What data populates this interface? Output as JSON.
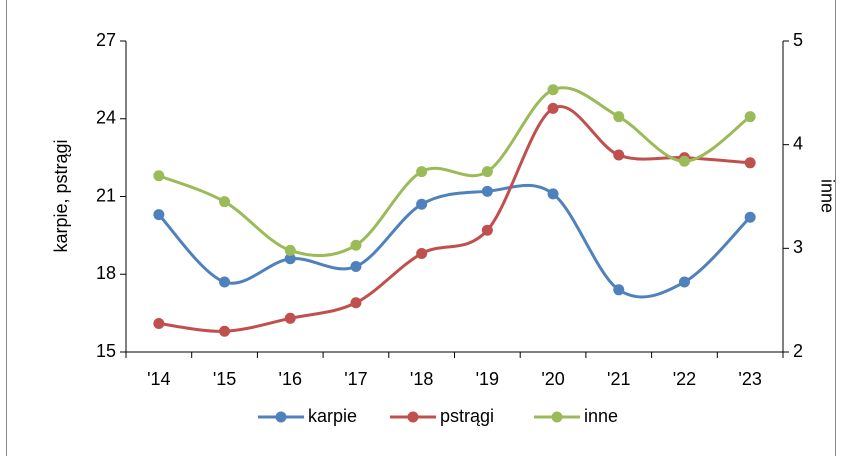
{
  "chart_data": {
    "type": "line",
    "categories": [
      "'14",
      "'15",
      "'16",
      "'17",
      "'18",
      "'19",
      "'20",
      "'21",
      "'22",
      "'23"
    ],
    "y_label": "karpie, pstrągi",
    "y2_label": "inne",
    "ylim": [
      15,
      27
    ],
    "yticks": [
      15,
      18,
      21,
      24,
      27
    ],
    "y2lim": [
      2,
      5
    ],
    "y2ticks": [
      2,
      3,
      4,
      5
    ],
    "smooth": true,
    "legend": "bottom",
    "series": [
      {
        "name": "karpie",
        "color": "#4f81bd",
        "values": [
          20.3,
          17.7,
          18.6,
          18.3,
          20.7,
          21.2,
          21.1,
          17.4,
          17.7,
          20.2
        ]
      },
      {
        "name": "pstrągi",
        "color": "#c0504d",
        "values": [
          16.1,
          15.8,
          16.3,
          16.9,
          18.8,
          19.7,
          24.4,
          22.6,
          22.5,
          22.3
        ]
      },
      {
        "name": "inne",
        "color": "#9bbb59",
        "axis": "y2",
        "values": [
          3.7,
          3.45,
          2.98,
          3.03,
          3.74,
          3.74,
          4.53,
          4.27,
          3.84,
          4.27
        ]
      }
    ]
  }
}
